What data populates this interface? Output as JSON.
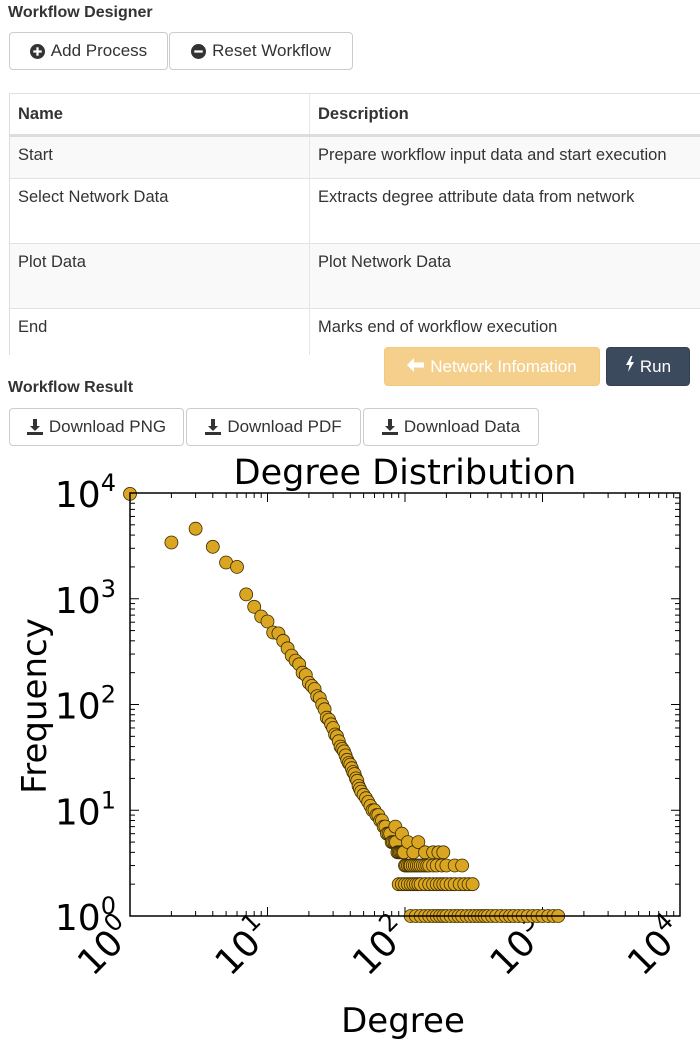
{
  "designer": {
    "title": "Workflow Designer",
    "add_process_label": "Add Process",
    "reset_workflow_label": "Reset Workflow"
  },
  "table": {
    "headers": [
      "Name",
      "Description"
    ],
    "rows": [
      {
        "name": "Start",
        "description": "Prepare workflow input data and start execution"
      },
      {
        "name": "Select Network Data",
        "description": "Extracts degree attribute data from network"
      },
      {
        "name": "Plot Data",
        "description": "Plot Network Data"
      },
      {
        "name": "End",
        "description": "Marks end of workflow execution"
      }
    ]
  },
  "actions": {
    "network_info_label": "Network Infomation",
    "run_label": "Run",
    "network_info_color": "#f5d08c",
    "run_color": "#3c4a5e"
  },
  "result": {
    "title": "Workflow Result",
    "download_png_label": "Download PNG",
    "download_pdf_label": "Download PDF",
    "download_data_label": "Download Data"
  },
  "chart_data": {
    "type": "scatter",
    "title": "Degree Distribution",
    "xlabel": "Degree",
    "ylabel": "Frequency",
    "xscale": "log",
    "yscale": "log",
    "xlim": [
      1,
      10000
    ],
    "ylim": [
      1,
      10000
    ],
    "x_ticks": [
      "10^0",
      "10^1",
      "10^2",
      "10^3",
      "10^4"
    ],
    "y_ticks": [
      "10^0",
      "10^1",
      "10^2",
      "10^3",
      "10^4"
    ],
    "marker_color": "#daa520",
    "grid": false,
    "points": [
      [
        1,
        9800
      ],
      [
        2,
        3400
      ],
      [
        3,
        4600
      ],
      [
        4,
        3100
      ],
      [
        5,
        2200
      ],
      [
        6,
        2000
      ],
      [
        7,
        1100
      ],
      [
        8,
        840
      ],
      [
        9,
        680
      ],
      [
        10,
        610
      ],
      [
        11,
        480
      ],
      [
        12,
        470
      ],
      [
        13,
        400
      ],
      [
        14,
        340
      ],
      [
        15,
        290
      ],
      [
        16,
        260
      ],
      [
        17,
        240
      ],
      [
        18,
        200
      ],
      [
        19,
        190
      ],
      [
        20,
        160
      ],
      [
        21,
        150
      ],
      [
        22,
        140
      ],
      [
        23,
        120
      ],
      [
        24,
        115
      ],
      [
        25,
        100
      ],
      [
        26,
        90
      ],
      [
        27,
        75
      ],
      [
        28,
        72
      ],
      [
        29,
        65
      ],
      [
        30,
        60
      ],
      [
        31,
        52
      ],
      [
        32,
        50
      ],
      [
        33,
        45
      ],
      [
        34,
        40
      ],
      [
        35,
        38
      ],
      [
        36,
        36
      ],
      [
        37,
        33
      ],
      [
        38,
        30
      ],
      [
        39,
        28
      ],
      [
        40,
        27
      ],
      [
        41,
        25
      ],
      [
        42,
        23
      ],
      [
        43,
        22
      ],
      [
        44,
        20
      ],
      [
        45,
        19
      ],
      [
        46,
        17
      ],
      [
        47,
        16
      ],
      [
        48,
        15
      ],
      [
        50,
        14
      ],
      [
        52,
        13
      ],
      [
        54,
        12
      ],
      [
        56,
        11
      ],
      [
        58,
        10
      ],
      [
        60,
        10
      ],
      [
        62,
        9
      ],
      [
        64,
        9
      ],
      [
        66,
        8
      ],
      [
        68,
        8
      ],
      [
        70,
        7
      ],
      [
        72,
        7
      ],
      [
        74,
        6
      ],
      [
        76,
        6
      ],
      [
        78,
        6
      ],
      [
        80,
        5
      ],
      [
        82,
        5
      ],
      [
        84,
        5
      ],
      [
        86,
        5
      ],
      [
        88,
        4
      ],
      [
        90,
        4
      ],
      [
        92,
        4
      ],
      [
        94,
        4
      ],
      [
        96,
        4
      ],
      [
        98,
        4
      ],
      [
        100,
        3
      ],
      [
        102,
        3
      ],
      [
        105,
        3
      ],
      [
        108,
        3
      ],
      [
        110,
        3
      ],
      [
        114,
        3
      ],
      [
        118,
        3
      ],
      [
        122,
        3
      ],
      [
        126,
        3
      ],
      [
        130,
        3
      ],
      [
        135,
        3
      ],
      [
        140,
        3
      ],
      [
        145,
        3
      ],
      [
        150,
        3
      ],
      [
        160,
        3
      ],
      [
        170,
        3
      ],
      [
        185,
        3
      ],
      [
        200,
        3
      ],
      [
        230,
        3
      ],
      [
        260,
        3
      ],
      [
        85,
        7
      ],
      [
        95,
        6
      ],
      [
        105,
        5
      ],
      [
        115,
        4
      ],
      [
        125,
        5
      ],
      [
        140,
        4
      ],
      [
        160,
        4
      ],
      [
        175,
        4
      ],
      [
        190,
        4
      ],
      [
        90,
        2
      ],
      [
        95,
        2
      ],
      [
        100,
        2
      ],
      [
        105,
        2
      ],
      [
        110,
        2
      ],
      [
        115,
        2
      ],
      [
        120,
        2
      ],
      [
        125,
        2
      ],
      [
        130,
        2
      ],
      [
        140,
        2
      ],
      [
        150,
        2
      ],
      [
        160,
        2
      ],
      [
        170,
        2
      ],
      [
        180,
        2
      ],
      [
        190,
        2
      ],
      [
        200,
        2
      ],
      [
        215,
        2
      ],
      [
        230,
        2
      ],
      [
        250,
        2
      ],
      [
        270,
        2
      ],
      [
        290,
        2
      ],
      [
        310,
        2
      ],
      [
        110,
        1
      ],
      [
        120,
        1
      ],
      [
        130,
        1
      ],
      [
        140,
        1
      ],
      [
        150,
        1
      ],
      [
        160,
        1
      ],
      [
        170,
        1
      ],
      [
        180,
        1
      ],
      [
        190,
        1
      ],
      [
        200,
        1
      ],
      [
        215,
        1
      ],
      [
        230,
        1
      ],
      [
        245,
        1
      ],
      [
        260,
        1
      ],
      [
        280,
        1
      ],
      [
        300,
        1
      ],
      [
        320,
        1
      ],
      [
        340,
        1
      ],
      [
        360,
        1
      ],
      [
        380,
        1
      ],
      [
        400,
        1
      ],
      [
        430,
        1
      ],
      [
        460,
        1
      ],
      [
        500,
        1
      ],
      [
        540,
        1
      ],
      [
        580,
        1
      ],
      [
        620,
        1
      ],
      [
        670,
        1
      ],
      [
        720,
        1
      ],
      [
        780,
        1
      ],
      [
        850,
        1
      ],
      [
        920,
        1
      ],
      [
        1000,
        1
      ],
      [
        1100,
        1
      ],
      [
        1200,
        1
      ],
      [
        1300,
        1
      ]
    ]
  }
}
